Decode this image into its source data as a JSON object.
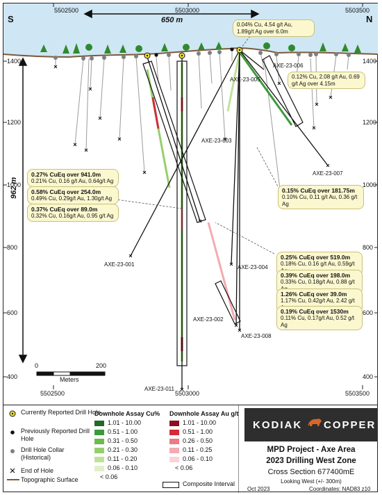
{
  "header": {
    "eastings": [
      "5502500",
      "5503000",
      "5503500"
    ],
    "width_label": "650 m",
    "south": "S",
    "north": "N",
    "depth_label": "962 m"
  },
  "elevations": [
    "1400",
    "1200",
    "1000",
    "800",
    "600",
    "400"
  ],
  "holes": {
    "axe001": "AXE-23-001",
    "axe002": "AXE-23-002",
    "axe003": "AXE-23-003",
    "axe004": "AXE-23-004",
    "axe005": "AXE-23-005",
    "axe006": "AXE-23-006",
    "axe007": "AXE-23-007",
    "axe008": "AXE-23-008",
    "axe011": "AXE-23-011"
  },
  "callouts": {
    "top": "0.04% Cu, 4.54 g/t Au, 1.89g/t Ag over 6.0m",
    "c006": "0.12% Cu, 2.08 g/t Au, 0.69 g/t Ag over 4.15m",
    "c007_h": "0.15% CuEq over 181.75m",
    "c007_d": "0.10% Cu, 0.11 g/t Au, 0.36 g/t Ag",
    "l1_h": "0.27% CuEq over 941.0m",
    "l1_d": "0.21% Cu, 0.16 g/t Au, 0.64g/t Ag",
    "l2_h": "0.58% CuEq over 254.0m",
    "l2_d": "0.49% Cu, 0.29g/t Au, 1.30g/t Ag",
    "l3_h": "0.37% CuEq over 89.0m",
    "l3_d": "0.32% Cu, 0.16g/t Au, 0.95 g/t Ag",
    "r1_h": "0.25% CuEq over 519.0m",
    "r1_d": "0.18% Cu, 0.16 g/t Au, 0.59g/t Ag",
    "r2_h": "0.39% CuEq over 198.0m",
    "r2_d": "0.33% Cu, 0.18g/t Au, 0.88 g/t Ag",
    "r3_h": "1.26% CuEq over 39.0m",
    "r3_d": "1.17% Cu, 0.42g/t Au, 2.42 g/t Ag",
    "r4_h": "0.19% CuEq over 1530m",
    "r4_d": "0.11% Cu, 0.17g/t Au, 0.52 g/t Ag"
  },
  "scale": {
    "zero": "0",
    "max": "200",
    "unit": "Meters"
  },
  "legend": {
    "current": "Currently Reported Drill Hole",
    "previous": "Previously Reported Drill Hole",
    "collar": "Drill Hole Collar (Historical)",
    "end": "End of Hole",
    "topo": "Topographic Surface",
    "cu_title": "Downhole Assay Cu%",
    "au_title": "Downhole Assay Au g/t",
    "cu_bins": [
      "1.01 - 10.00",
      "0.51 - 1.00",
      "0.31 - 0.50",
      "0.21 - 0.30",
      "0.11 - 0.20",
      "0.06 - 0.10",
      "< 0.06"
    ],
    "au_bins": [
      "1.01 - 10.00",
      "0.51 - 1.00",
      "0.26 - 0.50",
      "0.11 - 0.25",
      "0.06 - 0.10",
      "< 0.06"
    ],
    "composite": "Composite Interval",
    "cu_colors": [
      "#1e6b2a",
      "#3c9a3a",
      "#6dbb4a",
      "#95cf6c",
      "#bfe29a",
      "#dff0c8"
    ],
    "au_colors": [
      "#8b0f1f",
      "#d42a3a",
      "#ec7a86",
      "#f3aab2",
      "#f8d3d7"
    ]
  },
  "title": {
    "logo": "KODIAK COPPER",
    "project": "MPD Project - Axe Area",
    "zone": "2023 Drilling West Zone",
    "section": "Cross Section 677400mE",
    "looking": "Looking West (+/- 300m)",
    "date": "Oct 2023",
    "coords": "Coordinates: NAD83 z10"
  }
}
